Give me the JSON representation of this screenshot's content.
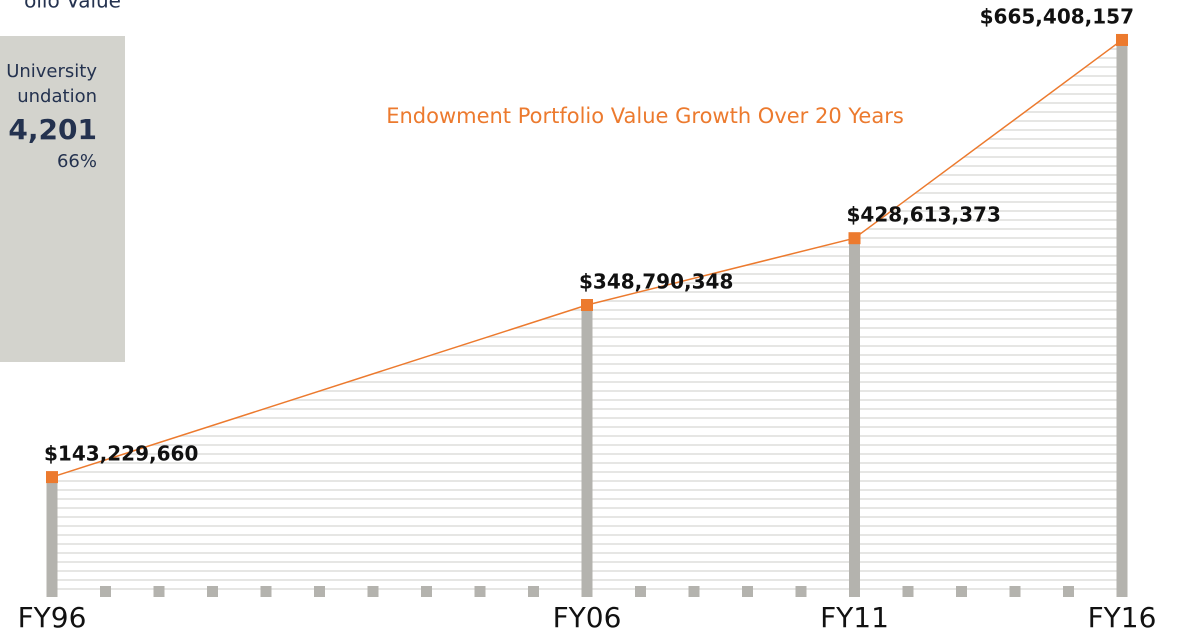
{
  "side_panel": {
    "heading": "olio Value",
    "lines": [
      "University",
      "undation"
    ],
    "amount": "4,201",
    "share": "66%"
  },
  "chart_data": {
    "type": "bar-line",
    "title": "Endowment Portfolio Value Growth Over 20 Years",
    "categories": [
      "FY96",
      null,
      null,
      null,
      null,
      null,
      null,
      null,
      null,
      null,
      "FY06",
      null,
      null,
      null,
      null,
      "FY11",
      null,
      null,
      null,
      null,
      "FY16"
    ],
    "values": [
      143229660,
      null,
      null,
      null,
      null,
      null,
      null,
      null,
      null,
      null,
      348790348,
      null,
      null,
      null,
      null,
      428613373,
      null,
      null,
      null,
      null,
      665408157
    ],
    "value_labels": [
      "$143,229,660",
      null,
      null,
      null,
      null,
      null,
      null,
      null,
      null,
      null,
      "$348,790,348",
      null,
      null,
      null,
      null,
      "$428,613,373",
      null,
      null,
      null,
      null,
      "$665,408,157"
    ],
    "ylim": [
      0,
      700000000
    ],
    "bar_color": "#b4b3ae",
    "line_color": "#ec7a2e"
  }
}
